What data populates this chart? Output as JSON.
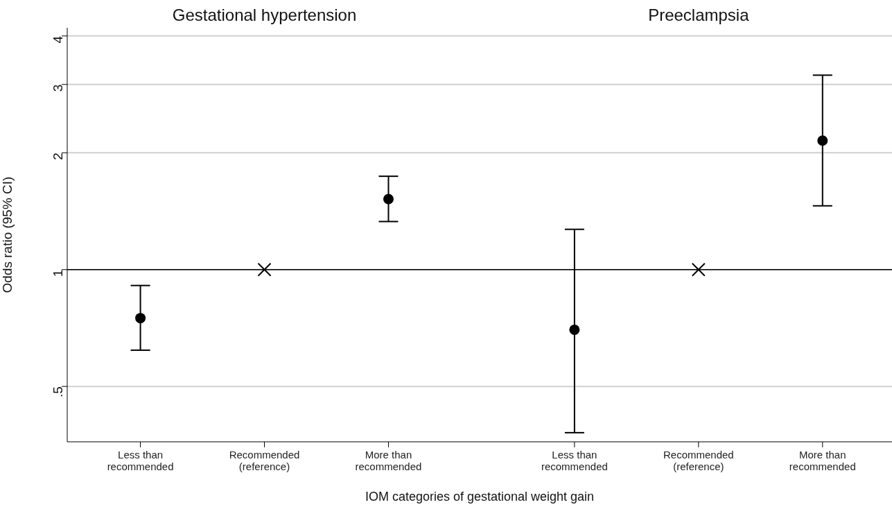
{
  "chart_data": {
    "type": "scatter",
    "xlabel": "IOM categories of gestational weight gain",
    "ylabel": "Odds ratio (95% CI)",
    "categories": [
      "Less than\nrecommended",
      "Recommended\n(reference)",
      "More than\nrecommended",
      "Less than\nrecommended",
      "Recommended\n(reference)",
      "More than\nrecommended"
    ],
    "series": [
      {
        "color": "#000000",
        "marker": "circle",
        "values": [
          0.75,
          null,
          1.52,
          0.7,
          null,
          2.15
        ],
        "errors": [
          [
            0.62,
            0.91
          ],
          null,
          [
            1.33,
            1.74
          ],
          [
            0.38,
            1.27
          ],
          null,
          [
            1.46,
            3.17
          ]
        ]
      },
      {
        "color": "#000000",
        "marker": "cross",
        "values": [
          null,
          1,
          null,
          null,
          1,
          null
        ]
      }
    ],
    "log": "y",
    "ylim": [
      0.36,
      4.2
    ],
    "yticks": [
      {
        "value": 0.5,
        "label": ".5"
      },
      1,
      2,
      3,
      4
    ],
    "grid": "y",
    "ref_lines": [
      {
        "axis": "y",
        "value": 1,
        "color": "#000000"
      }
    ],
    "annotations": [
      "Gestational hypertension",
      "Preeclampsia"
    ]
  }
}
